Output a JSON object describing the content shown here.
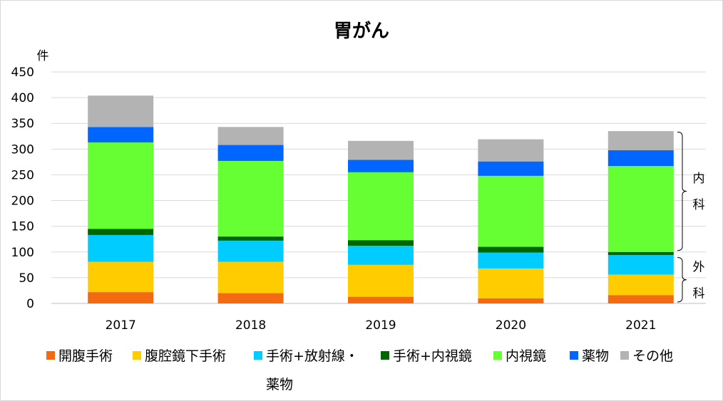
{
  "chart_data": {
    "type": "bar",
    "stacked": true,
    "title": "胃がん",
    "ylabel": "件",
    "xlabel": "",
    "ylim": [
      0,
      450
    ],
    "yticks": [
      0,
      50,
      100,
      150,
      200,
      250,
      300,
      350,
      400,
      450
    ],
    "grid": true,
    "legend_position": "bottom",
    "categories": [
      "2017",
      "2018",
      "2019",
      "2020",
      "2021"
    ],
    "series": [
      {
        "name": "開腹手術",
        "color": "#f26b12",
        "values": [
          22,
          20,
          13,
          10,
          16
        ]
      },
      {
        "name": "腹腔鏡下手術",
        "color": "#ffcc00",
        "values": [
          59,
          61,
          62,
          58,
          40
        ]
      },
      {
        "name": "手術+放射線・薬物",
        "color": "#00ccff",
        "values": [
          52,
          41,
          37,
          31,
          38
        ]
      },
      {
        "name": "手術+内視鏡",
        "color": "#006600",
        "values": [
          12,
          8,
          11,
          11,
          6
        ]
      },
      {
        "name": "内視鏡",
        "color": "#66ff33",
        "values": [
          168,
          147,
          132,
          138,
          167
        ]
      },
      {
        "name": "薬物",
        "color": "#0066ff",
        "values": [
          30,
          31,
          24,
          28,
          31
        ]
      },
      {
        "name": "その他",
        "color": "#b3b3b3",
        "values": [
          61,
          35,
          37,
          43,
          37
        ]
      }
    ],
    "annotations": [
      {
        "label_lines": [
          "内",
          "科"
        ],
        "range": [
          100,
          336
        ]
      },
      {
        "label_lines": [
          "外",
          "科"
        ],
        "range": [
          0,
          92
        ]
      }
    ]
  },
  "legend_lines": [
    [
      "開腹手術",
      "腹腔鏡下手術",
      "手術+放射線・",
      "手術+内視鏡",
      "内視鏡",
      "薬物",
      "その他"
    ],
    [
      "薬物"
    ]
  ]
}
